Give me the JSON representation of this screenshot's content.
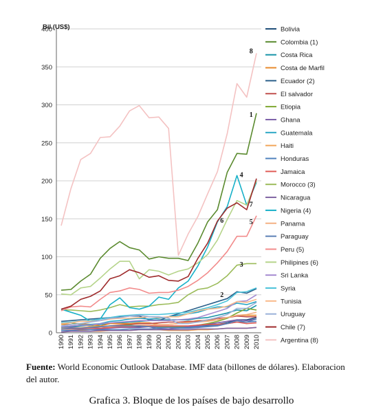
{
  "chart_data": {
    "type": "line",
    "ylabel": "Bil.(US$)",
    "ylim": [
      0,
      400
    ],
    "yticks": [
      0,
      50,
      100,
      150,
      200,
      250,
      300,
      350,
      400
    ],
    "x": [
      "1990",
      "1991",
      "1992",
      "1993",
      "1994",
      "1995",
      "1996",
      "1997",
      "1998",
      "1999",
      "2000",
      "2001",
      "2002",
      "2003",
      "2004",
      "2005",
      "2006",
      "2007",
      "2008",
      "2009",
      "2010"
    ],
    "grid": "horizontal",
    "legend_position": "right",
    "series": [
      {
        "name": "Bolivia",
        "color": "#1f4e79",
        "values": [
          5,
          5,
          6,
          6,
          6,
          7,
          7,
          8,
          8,
          8,
          8,
          8,
          8,
          8,
          9,
          10,
          11,
          13,
          17,
          17,
          20
        ]
      },
      {
        "name": "Colombia (1)",
        "color": "#5a8a2e",
        "values": [
          56,
          57,
          68,
          77,
          98,
          111,
          120,
          112,
          109,
          97,
          100,
          98,
          98,
          95,
          118,
          146,
          162,
          211,
          236,
          235,
          289
        ]
      },
      {
        "name": "Costa Rica",
        "color": "#1793a8",
        "values": [
          7,
          8,
          9,
          10,
          11,
          12,
          13,
          14,
          15,
          16,
          17,
          17,
          17,
          17,
          19,
          20,
          23,
          26,
          30,
          29,
          36
        ]
      },
      {
        "name": "Costa de Marfil",
        "color": "#e8892b",
        "values": [
          11,
          11,
          12,
          11,
          9,
          12,
          12,
          12,
          13,
          13,
          11,
          11,
          12,
          14,
          16,
          16,
          17,
          20,
          23,
          23,
          23
        ]
      },
      {
        "name": "Ecuador (2)",
        "color": "#2a5f8a",
        "values": [
          15,
          16,
          17,
          18,
          19,
          20,
          21,
          22,
          22,
          17,
          16,
          21,
          25,
          29,
          33,
          37,
          41,
          45,
          54,
          52,
          58
        ]
      },
      {
        "name": "El salvador",
        "color": "#c0504d",
        "values": [
          5,
          6,
          6,
          7,
          8,
          9,
          10,
          11,
          12,
          12,
          13,
          14,
          14,
          15,
          15,
          17,
          19,
          20,
          22,
          21,
          21
        ]
      },
      {
        "name": "Etiopia",
        "color": "#7fa832",
        "values": [
          12,
          13,
          11,
          9,
          8,
          8,
          9,
          10,
          9,
          8,
          8,
          8,
          8,
          8,
          10,
          12,
          15,
          19,
          26,
          32,
          30
        ]
      },
      {
        "name": "Ghana",
        "color": "#7b5ea7",
        "values": [
          6,
          7,
          7,
          6,
          5,
          6,
          7,
          7,
          7,
          8,
          5,
          5,
          6,
          8,
          9,
          11,
          13,
          15,
          17,
          16,
          18
        ]
      },
      {
        "name": "Guatemala",
        "color": "#2aa6c4",
        "values": [
          8,
          9,
          10,
          11,
          12,
          15,
          16,
          18,
          19,
          18,
          19,
          21,
          23,
          25,
          27,
          31,
          34,
          34,
          39,
          37,
          41
        ]
      },
      {
        "name": "Haiti",
        "color": "#f2a65a",
        "values": [
          3,
          3,
          3,
          2,
          2,
          3,
          3,
          3,
          4,
          4,
          4,
          3,
          3,
          3,
          4,
          4,
          5,
          6,
          6,
          6,
          7
        ]
      },
      {
        "name": "Honduras",
        "color": "#4f81bd",
        "values": [
          3,
          3,
          4,
          4,
          4,
          4,
          4,
          5,
          5,
          5,
          6,
          7,
          7,
          7,
          8,
          9,
          10,
          12,
          14,
          14,
          15
        ]
      },
      {
        "name": "Jamaica",
        "color": "#e05c57",
        "values": [
          5,
          5,
          5,
          6,
          6,
          7,
          8,
          8,
          9,
          9,
          9,
          9,
          9,
          9,
          10,
          11,
          11,
          12,
          14,
          12,
          13
        ]
      },
      {
        "name": "Morocco (3)",
        "color": "#9bbb59",
        "values": [
          30,
          30,
          29,
          28,
          30,
          33,
          37,
          34,
          35,
          35,
          37,
          38,
          40,
          50,
          57,
          59,
          65,
          75,
          89,
          91,
          91
        ]
      },
      {
        "name": "Nicaragua",
        "color": "#8064a2",
        "values": [
          1,
          2,
          2,
          2,
          3,
          3,
          3,
          3,
          4,
          4,
          4,
          4,
          4,
          4,
          5,
          5,
          5,
          6,
          6,
          6,
          7
        ]
      },
      {
        "name": "Nigeria (4)",
        "color": "#17b0c8",
        "values": [
          31,
          27,
          23,
          15,
          18,
          37,
          46,
          33,
          31,
          35,
          47,
          44,
          59,
          68,
          88,
          113,
          146,
          166,
          207,
          168,
          198
        ]
      },
      {
        "name": "Panama",
        "color": "#f4b183",
        "values": [
          6,
          6,
          7,
          8,
          8,
          8,
          9,
          9,
          10,
          10,
          11,
          11,
          12,
          13,
          14,
          15,
          17,
          20,
          23,
          24,
          27
        ]
      },
      {
        "name": "Paraguay",
        "color": "#5b7fb5",
        "values": [
          5,
          6,
          6,
          7,
          8,
          9,
          9,
          9,
          9,
          8,
          7,
          7,
          6,
          6,
          7,
          8,
          9,
          12,
          16,
          14,
          18
        ]
      },
      {
        "name": "Peru (5)",
        "color": "#f28b8b",
        "values": [
          29,
          34,
          35,
          34,
          44,
          53,
          55,
          59,
          57,
          52,
          53,
          53,
          56,
          61,
          69,
          79,
          92,
          107,
          127,
          127,
          154
        ]
      },
      {
        "name": "Philipines (6)",
        "color": "#b5d48a",
        "values": [
          51,
          50,
          59,
          61,
          72,
          84,
          94,
          94,
          71,
          83,
          81,
          76,
          81,
          84,
          92,
          103,
          122,
          149,
          174,
          168,
          200
        ]
      },
      {
        "name": "Sri Lanka",
        "color": "#a58bd1",
        "values": [
          8,
          9,
          10,
          10,
          12,
          13,
          14,
          15,
          16,
          16,
          16,
          16,
          17,
          18,
          20,
          24,
          28,
          32,
          41,
          42,
          50
        ]
      },
      {
        "name": "Syria",
        "color": "#4cc3d9",
        "values": [
          13,
          14,
          15,
          16,
          18,
          20,
          22,
          23,
          24,
          24,
          24,
          25,
          26,
          27,
          30,
          33,
          37,
          42,
          53,
          54,
          59
        ]
      },
      {
        "name": "Tunisia",
        "color": "#f9b98a",
        "values": [
          12,
          13,
          15,
          15,
          16,
          18,
          19,
          19,
          20,
          21,
          20,
          21,
          21,
          25,
          29,
          31,
          32,
          35,
          41,
          40,
          44
        ]
      },
      {
        "name": "Uruguay",
        "color": "#9ab0d8",
        "values": [
          9,
          11,
          12,
          14,
          16,
          19,
          20,
          22,
          23,
          21,
          21,
          19,
          12,
          12,
          14,
          17,
          20,
          24,
          32,
          32,
          40
        ]
      },
      {
        "name": "Chile (7)",
        "color": "#9e2a2b",
        "values": [
          31,
          35,
          44,
          48,
          55,
          71,
          75,
          83,
          79,
          73,
          75,
          69,
          68,
          74,
          98,
          118,
          147,
          164,
          171,
          162,
          203
        ]
      },
      {
        "name": "Argentina (8)",
        "color": "#f4c2c2",
        "values": [
          141,
          190,
          228,
          236,
          257,
          258,
          272,
          292,
          299,
          283,
          284,
          269,
          102,
          130,
          153,
          183,
          212,
          262,
          328,
          310,
          368
        ]
      }
    ],
    "annotations": [
      {
        "label": "8",
        "x": "2009",
        "y": 368
      },
      {
        "label": "1",
        "x": "2009",
        "y": 284
      },
      {
        "label": "4",
        "x": "2008",
        "y": 205
      },
      {
        "label": "7",
        "x": "2009",
        "y": 166
      },
      {
        "label": "6",
        "x": "2006",
        "y": 145
      },
      {
        "label": "5",
        "x": "2009",
        "y": 143
      },
      {
        "label": "3",
        "x": "2008",
        "y": 87
      },
      {
        "label": "2",
        "x": "2006",
        "y": 47
      }
    ]
  },
  "source": {
    "lead": "Fuente:",
    "text": " World Economic Outlook Database. IMF data (billones de dólares). Elaboracion del autor."
  },
  "caption": "Grafica 3. Bloque de los países de bajo desarrollo"
}
